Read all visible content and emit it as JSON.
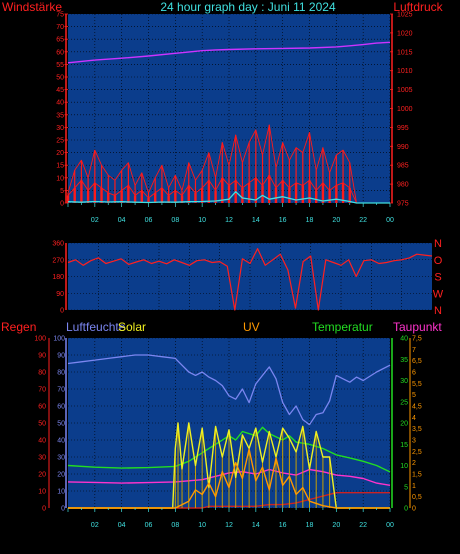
{
  "title": "24 hour graph day : Juni 11 2024",
  "colors": {
    "background": "#000000",
    "plot": "#0b3d8c",
    "grid": "#000000",
    "wind": "#ff1a1a",
    "gust": "#ff1a1a",
    "wind_avg": "#40e0e0",
    "pressure": "#cc33ff",
    "direction": "#ff2020",
    "humidity": "#7b86f0",
    "solar": "#f0f020",
    "uv": "#ff9900",
    "temperature": "#22dd22",
    "dewpoint": "#ff33cc",
    "rain": "#cc2222"
  },
  "chart_data": [
    {
      "type": "line",
      "id": "wind-pressure",
      "xlabel": "",
      "x_ticks": [
        "02",
        "04",
        "06",
        "08",
        "10",
        "12",
        "14",
        "16",
        "18",
        "20",
        "22",
        "00"
      ],
      "left_axis": {
        "label": "Windstärke",
        "ticks": [
          0,
          5,
          10,
          15,
          20,
          25,
          30,
          35,
          40,
          45,
          50,
          55,
          60,
          65,
          70,
          75
        ],
        "range": [
          0,
          75
        ]
      },
      "right_axis": {
        "label": "Luftdruck",
        "ticks": [
          975,
          980,
          985,
          990,
          995,
          1000,
          1005,
          1010,
          1015,
          1020,
          1025
        ],
        "range": [
          975,
          1025
        ]
      },
      "series": [
        {
          "role": "pressure",
          "axis": "right",
          "x": [
            0,
            2,
            4,
            6,
            8,
            10,
            11,
            12,
            14,
            16,
            18,
            20,
            21,
            22,
            23,
            24
          ],
          "y": [
            1012.1,
            1012.8,
            1013.3,
            1013.9,
            1014.6,
            1015.3,
            1015.5,
            1015.6,
            1015.8,
            1015.9,
            1016.0,
            1016.3,
            1016.6,
            1016.9,
            1017.3,
            1017.5
          ]
        },
        {
          "role": "gust",
          "axis": "left",
          "x": [
            0,
            0.5,
            1,
            1.5,
            2,
            2.5,
            3,
            3.5,
            4,
            4.5,
            5,
            5.5,
            6,
            6.5,
            7,
            7.5,
            8,
            8.5,
            9,
            9.5,
            10,
            10.5,
            11,
            11.5,
            12,
            12.5,
            13,
            13.5,
            14,
            14.5,
            15,
            15.5,
            16,
            16.5,
            17,
            17.5,
            18,
            18.5,
            19,
            19.5,
            20,
            20.5,
            21,
            21.5,
            22,
            22.5,
            23,
            23.5,
            24
          ],
          "y": [
            4,
            13,
            17,
            10,
            21,
            15,
            11,
            9,
            13,
            16,
            7,
            12,
            4,
            10,
            15,
            6,
            11,
            5,
            16,
            9,
            13,
            20,
            10,
            24,
            15,
            27,
            16,
            24,
            29,
            19,
            31,
            14,
            24,
            17,
            22,
            20,
            28,
            13,
            22,
            12,
            19,
            21,
            16,
            0,
            0,
            0,
            0,
            0,
            0
          ]
        },
        {
          "role": "wind",
          "axis": "left",
          "x": [
            0,
            0.5,
            1,
            1.5,
            2,
            2.5,
            3,
            3.5,
            4,
            4.5,
            5,
            5.5,
            6,
            6.5,
            7,
            7.5,
            8,
            8.5,
            9,
            9.5,
            10,
            10.5,
            11,
            11.5,
            12,
            12.5,
            13,
            13.5,
            14,
            14.5,
            15,
            15.5,
            16,
            16.5,
            17,
            17.5,
            18,
            18.5,
            19,
            19.5,
            20,
            20.5,
            21,
            21.5,
            22,
            22.5,
            23,
            23.5,
            24
          ],
          "y": [
            3,
            6,
            9,
            5,
            8,
            6,
            4,
            3,
            5,
            7,
            3,
            5,
            2,
            4,
            6,
            3,
            5,
            3,
            7,
            4,
            6,
            9,
            5,
            10,
            7,
            9,
            6,
            8,
            10,
            7,
            11,
            6,
            9,
            6,
            8,
            7,
            9,
            5,
            8,
            5,
            7,
            8,
            6,
            0,
            0,
            0,
            0,
            0,
            0
          ]
        },
        {
          "role": "wind_avg",
          "axis": "left",
          "x": [
            0,
            1,
            2,
            3,
            4,
            5,
            6,
            7,
            8,
            9,
            10,
            11,
            12,
            12.5,
            13,
            14,
            14.5,
            15,
            16,
            17,
            18,
            19,
            20,
            21,
            21.5,
            24
          ],
          "y": [
            0.5,
            0.3,
            0.6,
            0.4,
            0.5,
            0.3,
            0.2,
            0.4,
            0.3,
            0.5,
            0.6,
            0.8,
            1.5,
            4.5,
            2,
            1.2,
            3,
            1.5,
            2.5,
            1.2,
            2,
            0.8,
            1.5,
            0.6,
            0,
            0
          ]
        }
      ]
    },
    {
      "type": "line",
      "id": "wind-direction",
      "left_axis": {
        "label": "",
        "ticks": [
          0,
          90,
          180,
          270,
          360
        ],
        "range": [
          0,
          360
        ]
      },
      "right_axis": {
        "label": "",
        "ticks": [
          "N",
          "W",
          "S",
          "O",
          "N"
        ]
      },
      "series": [
        {
          "role": "direction",
          "axis": "left",
          "x": [
            0,
            0.5,
            1,
            1.5,
            2,
            2.5,
            3,
            3.5,
            4,
            4.5,
            5,
            5.5,
            6,
            6.5,
            7,
            7.5,
            8,
            8.5,
            9,
            9.5,
            10,
            10.5,
            11,
            11.5,
            12,
            12.5,
            13,
            13.5,
            14,
            14.5,
            15,
            15.5,
            16,
            16.5,
            17,
            17.5,
            18,
            18.5,
            19,
            19.5,
            20,
            20.5,
            21,
            21.5,
            22,
            22.5,
            23,
            23.5,
            24
          ],
          "y": [
            255,
            270,
            240,
            265,
            280,
            250,
            262,
            275,
            245,
            258,
            270,
            250,
            262,
            248,
            270,
            255,
            240,
            265,
            270,
            255,
            260,
            235,
            0,
            275,
            250,
            330,
            240,
            270,
            300,
            215,
            10,
            260,
            290,
            0,
            270,
            255,
            240,
            270,
            180,
            265,
            270,
            250,
            255,
            265,
            270,
            280,
            300,
            295,
            290
          ]
        }
      ]
    },
    {
      "type": "line",
      "id": "humidity-solar-temp",
      "x_ticks": [
        "02",
        "04",
        "06",
        "08",
        "10",
        "12",
        "14",
        "16",
        "18",
        "20",
        "22",
        "00"
      ],
      "axes": [
        {
          "label": "Regen",
          "ticks": [
            0,
            10,
            20,
            30,
            40,
            50,
            60,
            70,
            80,
            90,
            100
          ]
        },
        {
          "label": "Luftfeuchte",
          "ticks": [
            0,
            10,
            20,
            30,
            40,
            50,
            60,
            70,
            80,
            90,
            100
          ]
        },
        {
          "label": "Solar",
          "ticks": []
        },
        {
          "label": "UV",
          "ticks": []
        },
        {
          "label": "Temperatur",
          "ticks": [
            0,
            5,
            10,
            15,
            20,
            25,
            30,
            35,
            40
          ]
        },
        {
          "label": "Taupunkt",
          "ticks": [
            "0",
            "0,5",
            "1",
            "1,5",
            "2",
            "2,5",
            "3",
            "3,5",
            "4",
            "4,5",
            "5",
            "5,5",
            "6",
            "6,5",
            "7",
            "7,5"
          ]
        }
      ],
      "series": [
        {
          "role": "humidity",
          "axis": "humidity",
          "range": [
            0,
            100
          ],
          "x": [
            0,
            1,
            2,
            3,
            4,
            5,
            6,
            7,
            8,
            8.5,
            9,
            9.5,
            10,
            10.5,
            11,
            11.5,
            12,
            12.5,
            13,
            13.5,
            14,
            14.5,
            15,
            15.5,
            16,
            16.5,
            17,
            17.5,
            18,
            18.5,
            19,
            19.5,
            20,
            20.5,
            21,
            21.5,
            22,
            23,
            24
          ],
          "y": [
            85,
            86,
            87,
            88,
            89,
            90,
            90,
            89,
            88,
            84,
            80,
            78,
            80,
            77,
            75,
            72,
            66,
            64,
            70,
            62,
            73,
            78,
            83,
            76,
            62,
            55,
            60,
            52,
            49,
            55,
            56,
            63,
            78,
            76,
            74,
            77,
            75,
            80,
            84
          ]
        },
        {
          "role": "solar",
          "axis": "solar",
          "range": [
            0,
            1000
          ],
          "x": [
            0,
            7.5,
            7.8,
            8,
            8.2,
            8.5,
            9,
            9.5,
            10,
            10.5,
            11,
            11.5,
            12,
            12.5,
            13,
            13.5,
            14,
            14.5,
            15,
            15.5,
            16,
            16.5,
            17,
            17.5,
            18,
            18.5,
            19,
            19.5,
            20,
            24
          ],
          "y": [
            0,
            0,
            0,
            350,
            500,
            230,
            500,
            250,
            470,
            120,
            480,
            300,
            460,
            180,
            430,
            350,
            470,
            270,
            450,
            300,
            470,
            410,
            330,
            480,
            230,
            450,
            300,
            300,
            0,
            0
          ]
        },
        {
          "role": "uv",
          "axis": "uv",
          "range": [
            0,
            7.5
          ],
          "x": [
            0,
            8,
            9,
            9.5,
            10,
            10.5,
            11,
            11.5,
            12,
            12.5,
            13,
            13.5,
            14,
            14.5,
            15,
            15.5,
            16,
            16.5,
            17,
            17.5,
            18,
            19,
            20,
            24
          ],
          "y": [
            0,
            0,
            0.3,
            0.8,
            0.6,
            1.1,
            0.5,
            1.6,
            0.9,
            2.0,
            1.3,
            2.6,
            1.2,
            1.8,
            0.8,
            2.2,
            1.0,
            1.4,
            0.6,
            0.9,
            0.3,
            0.1,
            0,
            0
          ]
        },
        {
          "role": "temperature",
          "axis": "temperature",
          "range": [
            0,
            40
          ],
          "x": [
            0,
            2,
            4,
            6,
            8,
            9,
            10,
            10.5,
            11,
            12,
            12.5,
            13,
            14,
            14.5,
            15,
            16,
            16.5,
            17,
            18,
            19,
            20,
            21,
            22,
            23,
            24
          ],
          "y": [
            10,
            9.6,
            9.4,
            9.5,
            9.8,
            11,
            13,
            14,
            15,
            17,
            16,
            18,
            17,
            19,
            17.5,
            16,
            17,
            15.5,
            15,
            14,
            12.5,
            11.8,
            11,
            10,
            8.5
          ]
        },
        {
          "role": "dewpoint",
          "axis": "dewpoint",
          "range": [
            0,
            7.5
          ],
          "x": [
            0,
            2,
            4,
            6,
            8,
            10,
            12,
            13,
            14,
            15,
            16,
            17,
            18,
            19,
            20,
            21,
            22,
            23,
            24
          ],
          "y": [
            1.15,
            1.13,
            1.1,
            1.12,
            1.15,
            1.25,
            1.55,
            1.6,
            1.5,
            1.7,
            1.55,
            1.45,
            1.7,
            1.6,
            1.45,
            1.4,
            1.3,
            1.1,
            1.0
          ]
        },
        {
          "role": "rain",
          "axis": "rain",
          "range": [
            0,
            100
          ],
          "x": [
            0,
            10,
            10.5,
            14,
            15,
            16,
            17,
            18,
            19,
            20,
            24
          ],
          "y": [
            0,
            0,
            1,
            1,
            2,
            2,
            3,
            5,
            7,
            9,
            9
          ]
        }
      ]
    }
  ]
}
